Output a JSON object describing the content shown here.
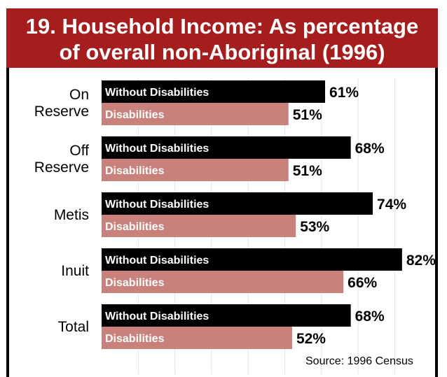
{
  "title": {
    "line1": "19.  Household Income: As percentage",
    "line2": "of overall non-Aboriginal (1996)"
  },
  "source": "Source: 1996 Census",
  "colors": {
    "banner": "#a51d1d",
    "without": "#000000",
    "with": "#c8817b"
  },
  "chart_data": {
    "type": "bar",
    "orientation": "horizontal",
    "categories": [
      "On Reserve",
      "Off Reserve",
      "Metis",
      "Inuit",
      "Total"
    ],
    "category_lines": [
      [
        "On",
        "Reserve"
      ],
      [
        "Off",
        "Reserve"
      ],
      [
        "Metis"
      ],
      [
        "Inuit"
      ],
      [
        "Total"
      ]
    ],
    "series": [
      {
        "name": "Without Disabilities",
        "values": [
          61,
          68,
          74,
          82,
          68
        ],
        "labels": [
          "61%",
          "68%",
          "74%",
          "82%",
          "68%"
        ]
      },
      {
        "name": "Disabilities",
        "values": [
          51,
          51,
          53,
          66,
          52
        ],
        "labels": [
          "51%",
          "51%",
          "53%",
          "66%",
          "52%"
        ]
      }
    ],
    "unit": "%",
    "xlim": [
      0,
      85
    ],
    "grid": true
  }
}
